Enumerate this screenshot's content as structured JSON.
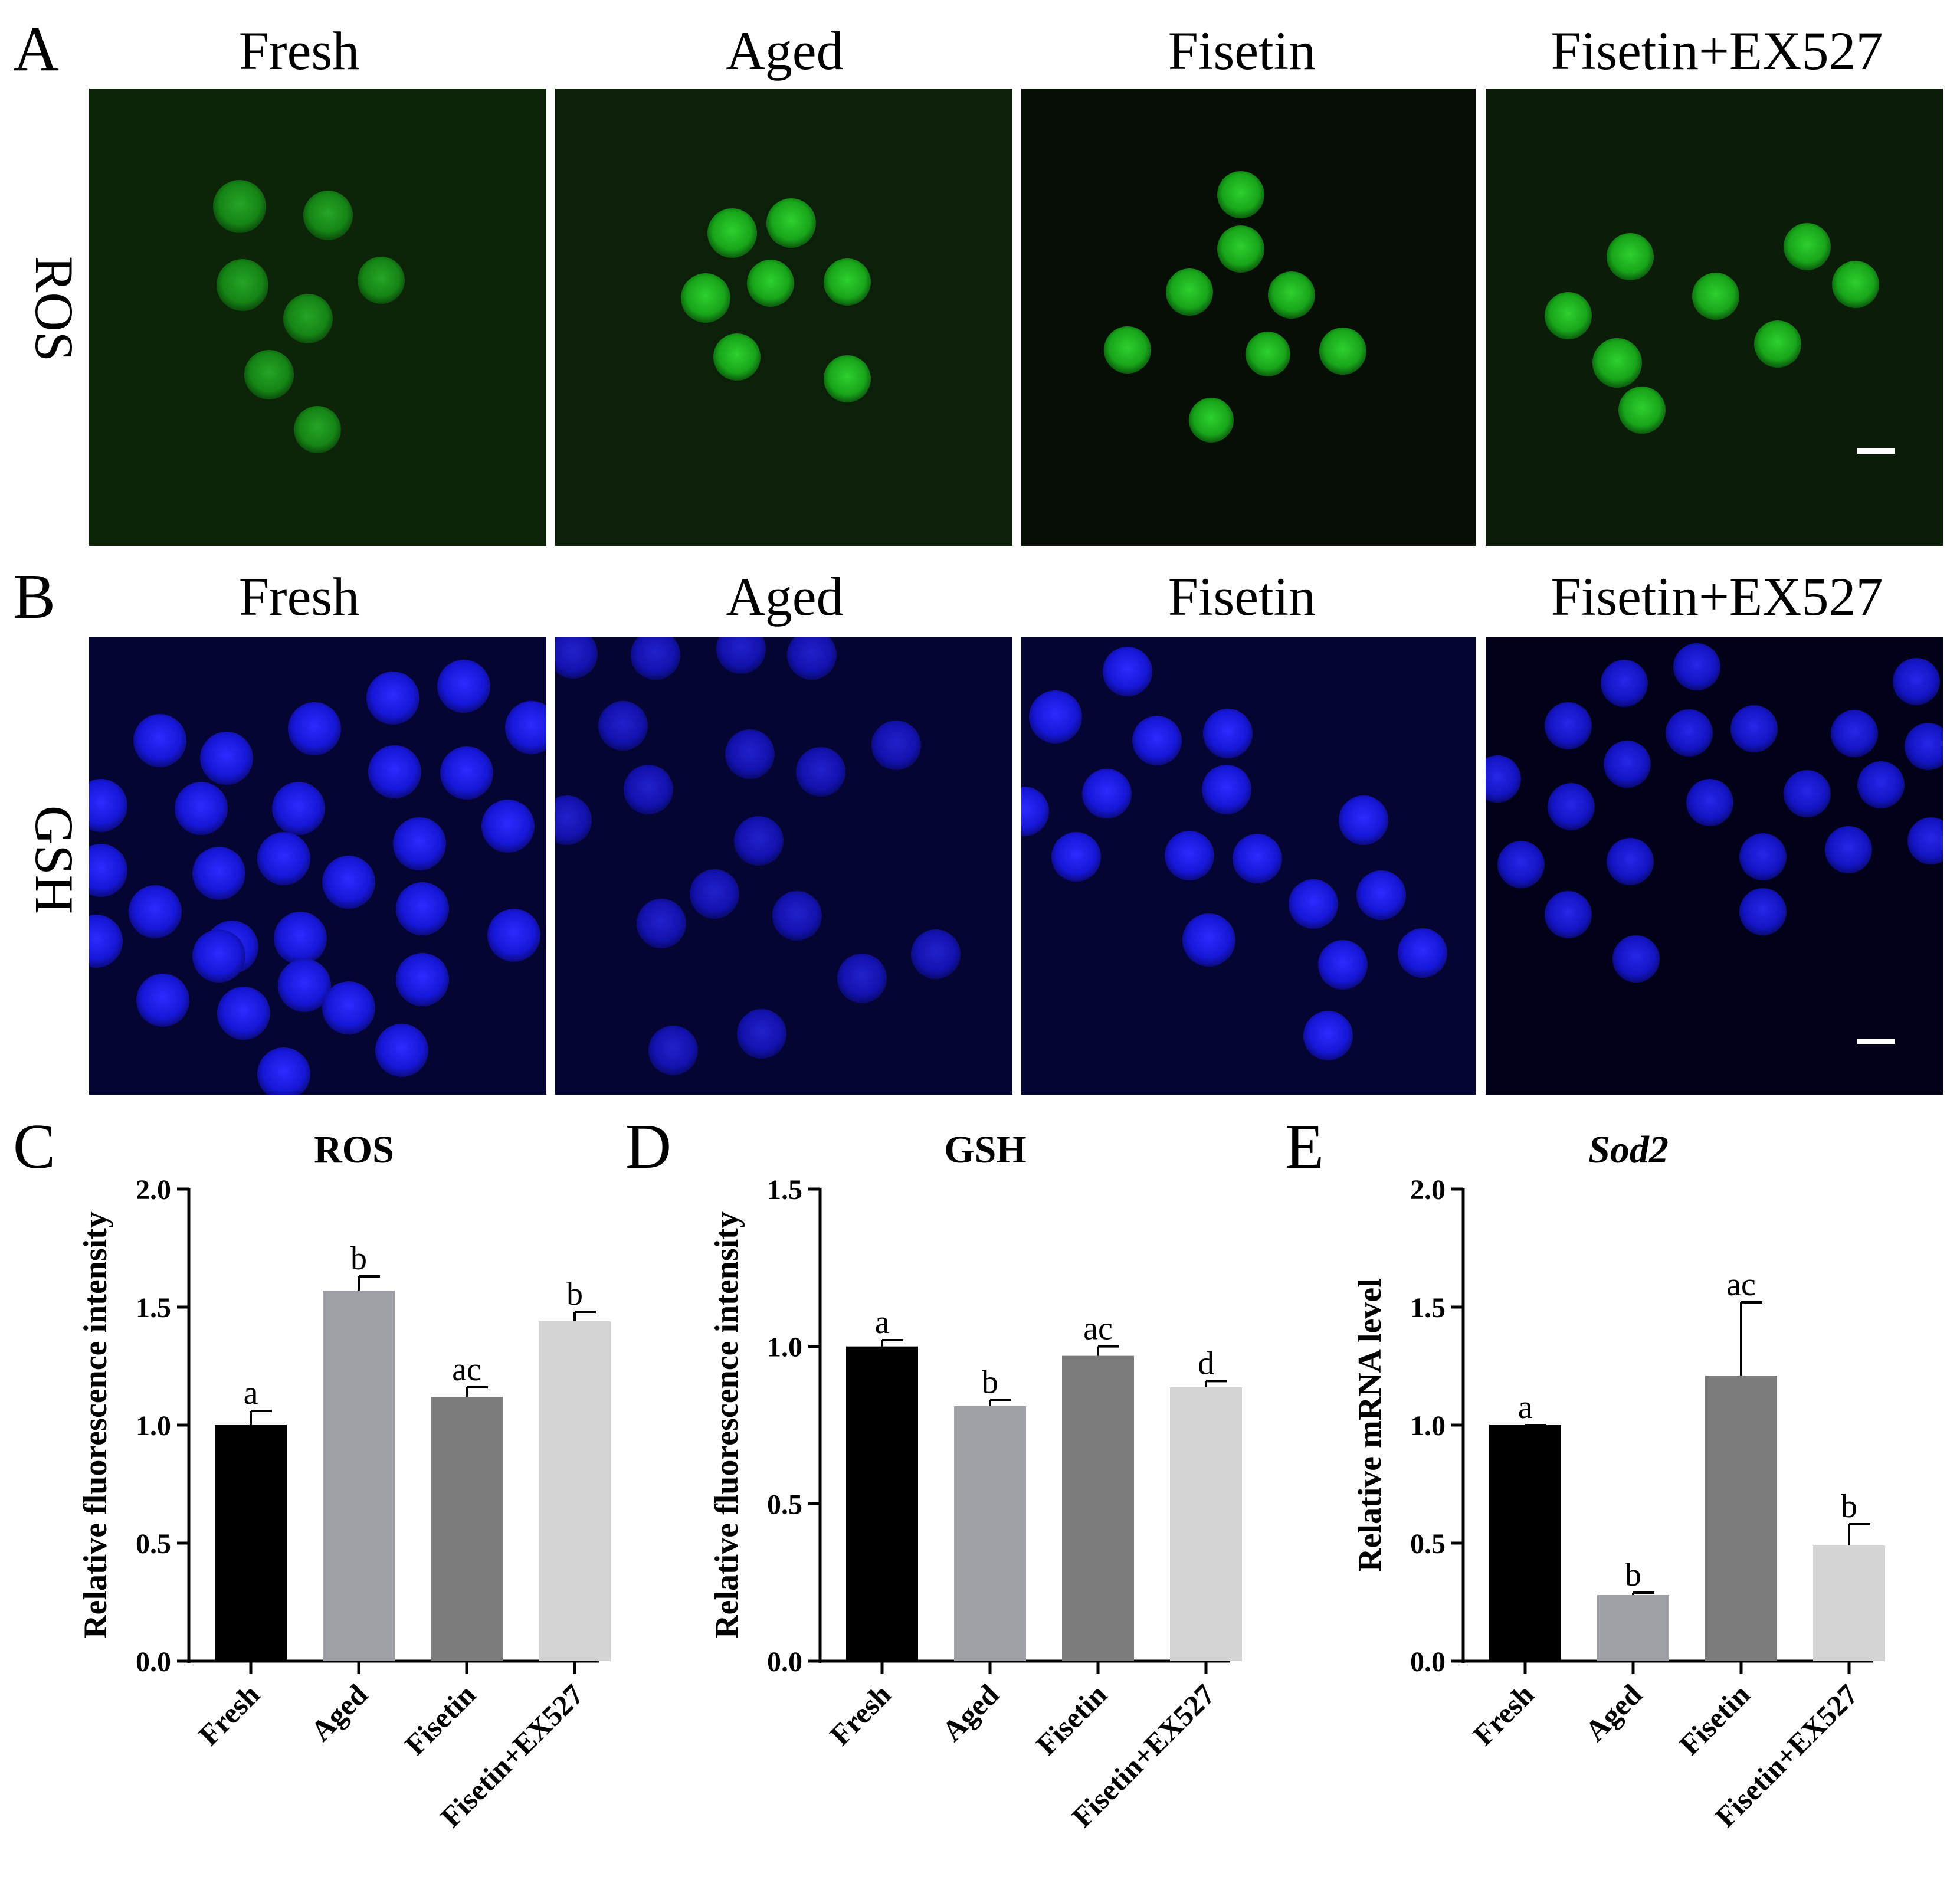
{
  "panels": {
    "A": {
      "letter": "A",
      "row_label": "ROS"
    },
    "B": {
      "letter": "B",
      "row_label": "GSH"
    },
    "C": {
      "letter": "C"
    },
    "D": {
      "letter": "D"
    },
    "E": {
      "letter": "E"
    }
  },
  "column_titles": [
    "Fresh",
    "Aged",
    "Fisetin",
    "Fisetin+EX527"
  ],
  "micrographs": {
    "ros_color": "#1fbf22",
    "ros_bg": "#0a1a08",
    "gsh_color": "#1c1cf0",
    "gsh_bg": "#050533",
    "scale_bar_color": "#ffffff"
  },
  "bar_colors": [
    "#000000",
    "#a0a1a6",
    "#7b7b7b",
    "#d4d4d4"
  ],
  "chart_data": [
    {
      "type": "bar",
      "title": "ROS",
      "title_italic": false,
      "ylabel": "Relative fluorescence intensity",
      "categories": [
        "Fresh",
        "Aged",
        "Fisetin",
        "Fisetin+EX527"
      ],
      "values": [
        1.0,
        1.57,
        1.12,
        1.44
      ],
      "errors": [
        0.06,
        0.06,
        0.04,
        0.04
      ],
      "sig_letters": [
        "a",
        "b",
        "ac",
        "b"
      ],
      "ylim": [
        0,
        2.0
      ],
      "yticks": [
        "0.0",
        "0.5",
        "1.0",
        "1.5",
        "2.0"
      ]
    },
    {
      "type": "bar",
      "title": "GSH",
      "title_italic": false,
      "ylabel": "Relative fluorescence intensity",
      "categories": [
        "Fresh",
        "Aged",
        "Fisetin",
        "Fisetin+EX527"
      ],
      "values": [
        1.0,
        0.81,
        0.97,
        0.87
      ],
      "errors": [
        0.02,
        0.02,
        0.03,
        0.02
      ],
      "sig_letters": [
        "a",
        "b",
        "ac",
        "d"
      ],
      "ylim": [
        0,
        1.5
      ],
      "yticks": [
        "0.0",
        "0.5",
        "1.0",
        "1.5"
      ]
    },
    {
      "type": "bar",
      "title": "Sod2",
      "title_italic": true,
      "ylabel": "Relative mRNA level",
      "categories": [
        "Fresh",
        "Aged",
        "Fisetin",
        "Fisetin+EX527"
      ],
      "values": [
        1.0,
        0.28,
        1.21,
        0.49
      ],
      "errors": [
        0.0,
        0.01,
        0.31,
        0.09
      ],
      "sig_letters": [
        "a",
        "b",
        "ac",
        "b"
      ],
      "ylim": [
        0,
        2.0
      ],
      "yticks": [
        "0.0",
        "0.5",
        "1.0",
        "1.5",
        "2.0"
      ]
    }
  ]
}
